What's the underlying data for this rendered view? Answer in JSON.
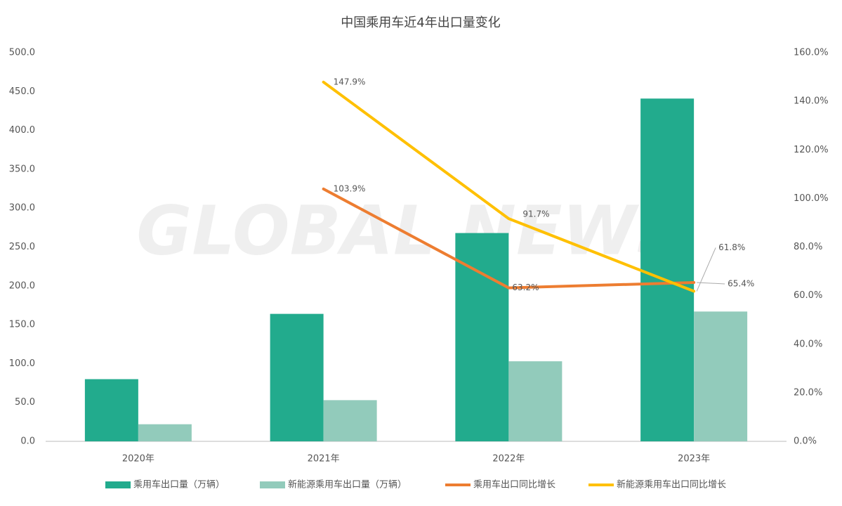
{
  "chart_data": {
    "type": "bar",
    "title": "中国乘用车近4年出口量变化",
    "watermark": "GLOBAL NEWS",
    "categories": [
      "2020年",
      "2021年",
      "2022年",
      "2023年"
    ],
    "series": [
      {
        "name": "乘用车出口量（万辆）",
        "type": "bar",
        "color": "#22ab8d",
        "values": [
          80,
          164,
          268,
          441
        ]
      },
      {
        "name": "新能源乘用车出口量（万辆）",
        "type": "bar",
        "color": "#92cbbb",
        "values": [
          22,
          53,
          103,
          167
        ]
      },
      {
        "name": "乘用车出口同比增长",
        "type": "line",
        "axis": "y2",
        "color": "#ed7d31",
        "values": [
          null,
          103.9,
          63.2,
          65.4
        ],
        "value_labels": [
          null,
          "103.9%",
          "63.2%",
          "65.4%"
        ]
      },
      {
        "name": "新能源乘用车出口同比增长",
        "type": "line",
        "axis": "y2",
        "color": "#ffc000",
        "values": [
          null,
          147.9,
          91.7,
          61.8
        ],
        "value_labels": [
          null,
          "147.9%",
          "91.7%",
          "61.8%"
        ]
      }
    ],
    "ylim": [
      0,
      500
    ],
    "yticks": [
      {
        "value": 0,
        "label": "0.0"
      },
      {
        "value": 50,
        "label": "50.0"
      },
      {
        "value": 100,
        "label": "100.0"
      },
      {
        "value": 150,
        "label": "150.0"
      },
      {
        "value": 200,
        "label": "200.0"
      },
      {
        "value": 250,
        "label": "250.0"
      },
      {
        "value": 300,
        "label": "300.0"
      },
      {
        "value": 350,
        "label": "350.0"
      },
      {
        "value": 400,
        "label": "400.0"
      },
      {
        "value": 450,
        "label": "450.0"
      },
      {
        "value": 500,
        "label": "500.0"
      }
    ],
    "y2lim": [
      0,
      160
    ],
    "y2ticks": [
      {
        "value": 0,
        "label": "0.0%"
      },
      {
        "value": 20,
        "label": "20.0%"
      },
      {
        "value": 40,
        "label": "40.0%"
      },
      {
        "value": 60,
        "label": "60.0%"
      },
      {
        "value": 80,
        "label": "80.0%"
      },
      {
        "value": 100,
        "label": "100.0%"
      },
      {
        "value": 120,
        "label": "120.0%"
      },
      {
        "value": 140,
        "label": "140.0%"
      },
      {
        "value": 160,
        "label": "160.0%"
      }
    ],
    "legend": "bottom",
    "grid": false
  }
}
